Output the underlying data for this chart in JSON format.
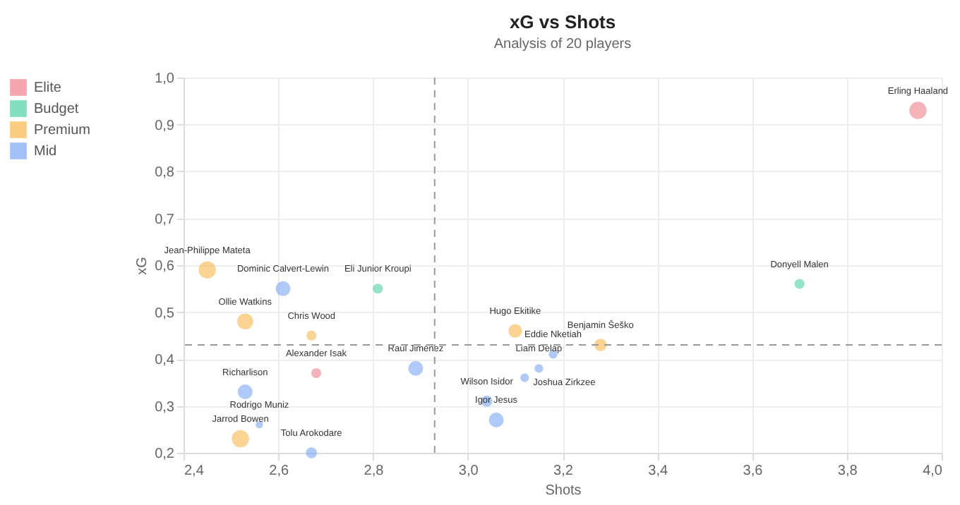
{
  "chart_data": {
    "type": "bubble",
    "title": "xG vs Shots",
    "subtitle": "Analysis of 20 players",
    "xlabel": "Shots",
    "ylabel": "xG",
    "xlim": [
      2.4,
      4.0
    ],
    "ylim": [
      0.2,
      1.0
    ],
    "xticks": [
      {
        "value": 2.4,
        "label": "2,4"
      },
      {
        "value": 2.6,
        "label": "2,6"
      },
      {
        "value": 2.8,
        "label": "2,8"
      },
      {
        "value": 3.0,
        "label": "3,0"
      },
      {
        "value": 3.2,
        "label": "3,2"
      },
      {
        "value": 3.4,
        "label": "3,4"
      },
      {
        "value": 3.6,
        "label": "3,6"
      },
      {
        "value": 3.8,
        "label": "3,8"
      },
      {
        "value": 4.0,
        "label": "4,0"
      }
    ],
    "yticks": [
      {
        "value": 0.2,
        "label": "0,2"
      },
      {
        "value": 0.3,
        "label": "0,3"
      },
      {
        "value": 0.4,
        "label": "0,4"
      },
      {
        "value": 0.5,
        "label": "0,5"
      },
      {
        "value": 0.6,
        "label": "0,6"
      },
      {
        "value": 0.7,
        "label": "0,7"
      },
      {
        "value": 0.8,
        "label": "0,8"
      },
      {
        "value": 0.9,
        "label": "0,9"
      },
      {
        "value": 1.0,
        "label": "1,0"
      }
    ],
    "grid": true,
    "legend": "left",
    "marker": "circle",
    "series": [
      {
        "name": "Elite",
        "color": "#f07f8a",
        "x": [
          3.95,
          2.68
        ],
        "values": [
          0.93,
          0.37
        ],
        "sizes": [
          1,
          0.33
        ]
      },
      {
        "name": "Budget",
        "color": "#4fd1a5",
        "x": [
          2.81,
          3.7
        ],
        "values": [
          0.55,
          0.56
        ],
        "sizes": [
          0.33,
          0.33
        ]
      },
      {
        "name": "Premium",
        "color": "#f8b84c",
        "x": [
          2.45,
          2.53,
          2.67,
          3.1,
          3.28,
          2.52
        ],
        "values": [
          0.59,
          0.48,
          0.45,
          0.46,
          0.43,
          0.23
        ],
        "sizes": [
          1,
          0.86,
          0.33,
          0.62,
          0.51,
          1
        ]
      },
      {
        "name": "Mid",
        "color": "#7aa6f5",
        "x": [
          2.61,
          2.89,
          2.53,
          2.56,
          2.67,
          3.18,
          3.15,
          3.12,
          3.04,
          3.06
        ],
        "values": [
          0.55,
          0.38,
          0.33,
          0.26,
          0.2,
          0.41,
          0.38,
          0.36,
          0.31,
          0.27
        ],
        "sizes": [
          0.73,
          0.73,
          0.73,
          0.18,
          0.41,
          0.25,
          0.25,
          0.25,
          0.41,
          0.73
        ]
      }
    ],
    "annotations": [
      {
        "text": "Erling Haaland",
        "x": 3.95,
        "y": 0.93
      },
      {
        "text": "Alexander Isak",
        "x": 2.68,
        "y": 0.37
      },
      {
        "text": "Eli Junior Kroupi",
        "x": 2.81,
        "y": 0.55
      },
      {
        "text": "Donyell Malen",
        "x": 3.7,
        "y": 0.56
      },
      {
        "text": "Jean-Philippe Mateta",
        "x": 2.45,
        "y": 0.59
      },
      {
        "text": "Ollie Watkins",
        "x": 2.53,
        "y": 0.48
      },
      {
        "text": "Chris Wood",
        "x": 2.67,
        "y": 0.45
      },
      {
        "text": "Hugo Ekitike",
        "x": 3.1,
        "y": 0.46
      },
      {
        "text": "Benjamin Šeško",
        "x": 3.28,
        "y": 0.43
      },
      {
        "text": "Jarrod Bowen",
        "x": 2.52,
        "y": 0.23
      },
      {
        "text": "Dominic Calvert-Lewin",
        "x": 2.61,
        "y": 0.55
      },
      {
        "text": "Raul Jiménez",
        "x": 2.89,
        "y": 0.38
      },
      {
        "text": "Richarlison",
        "x": 2.53,
        "y": 0.33
      },
      {
        "text": "Rodrigo Muniz",
        "x": 2.56,
        "y": 0.26
      },
      {
        "text": "Tolu Arokodare",
        "x": 2.67,
        "y": 0.2
      },
      {
        "text": "Eddie Nketiah",
        "x": 3.18,
        "y": 0.41
      },
      {
        "text": "Liam Delap",
        "x": 3.15,
        "y": 0.38
      },
      {
        "text": "Joshua Zirkzee",
        "x": 3.12,
        "y": 0.36
      },
      {
        "text": "Wilson Isidor",
        "x": 3.04,
        "y": 0.31
      },
      {
        "text": "Igor Jesus",
        "x": 3.06,
        "y": 0.27
      }
    ],
    "ref_lines": [
      {
        "axis": "x",
        "value": 2.93,
        "line_style": "dashed"
      },
      {
        "axis": "y",
        "value": 0.43,
        "line_style": "dashed"
      }
    ]
  }
}
